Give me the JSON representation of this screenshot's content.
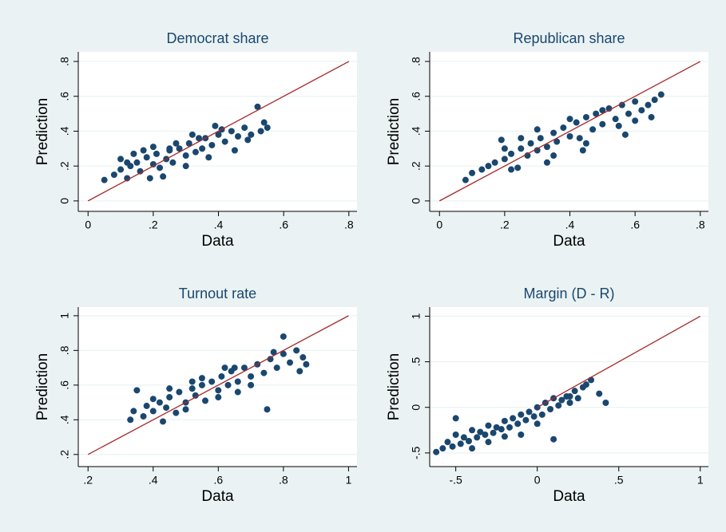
{
  "chart_data": [
    {
      "type": "scatter",
      "title": "Democrat share",
      "xlabel": "Data",
      "ylabel": "Prediction",
      "color": "#1a476f",
      "grid": true,
      "xlim": [
        -0.03,
        0.825
      ],
      "ylim": [
        -0.06,
        0.855
      ],
      "xticks": [
        0,
        {
          "value": 0.2,
          "label": ".2"
        },
        {
          "value": 0.4,
          "label": ".4"
        },
        {
          "value": 0.6,
          "label": ".6"
        },
        {
          "value": 0.8,
          "label": ".8"
        }
      ],
      "yticks": [
        0,
        {
          "value": 0.2,
          "label": ".2"
        },
        {
          "value": 0.4,
          "label": ".4"
        },
        {
          "value": 0.6,
          "label": ".6"
        },
        {
          "value": 0.8,
          "label": ".8"
        }
      ],
      "x": [
        0.05,
        0.08,
        0.1,
        0.12,
        0.13,
        0.15,
        0.16,
        0.18,
        0.2,
        0.21,
        0.22,
        0.24,
        0.25,
        0.26,
        0.28,
        0.3,
        0.31,
        0.33,
        0.35,
        0.36,
        0.38,
        0.4,
        0.42,
        0.44,
        0.46,
        0.48,
        0.5,
        0.52,
        0.54,
        0.55,
        0.1,
        0.14,
        0.17,
        0.2,
        0.23,
        0.27,
        0.3,
        0.34,
        0.37,
        0.41,
        0.45,
        0.49,
        0.53,
        0.12,
        0.19,
        0.25,
        0.32,
        0.39
      ],
      "y": [
        0.12,
        0.15,
        0.18,
        0.13,
        0.2,
        0.22,
        0.17,
        0.25,
        0.21,
        0.27,
        0.19,
        0.24,
        0.29,
        0.22,
        0.3,
        0.26,
        0.33,
        0.28,
        0.3,
        0.36,
        0.32,
        0.38,
        0.34,
        0.4,
        0.37,
        0.42,
        0.38,
        0.54,
        0.45,
        0.42,
        0.24,
        0.27,
        0.29,
        0.31,
        0.14,
        0.33,
        0.2,
        0.36,
        0.25,
        0.41,
        0.29,
        0.35,
        0.4,
        0.22,
        0.13,
        0.3,
        0.38,
        0.43
      ],
      "reference_line": {
        "x": [
          0,
          0.8
        ],
        "y": [
          0,
          0.8
        ],
        "color": "#a52a2a"
      }
    },
    {
      "type": "scatter",
      "title": "Republican share",
      "xlabel": "Data",
      "ylabel": "Prediction",
      "color": "#1a476f",
      "grid": true,
      "xlim": [
        -0.03,
        0.825
      ],
      "ylim": [
        -0.06,
        0.855
      ],
      "xticks": [
        0,
        {
          "value": 0.2,
          "label": ".2"
        },
        {
          "value": 0.4,
          "label": ".4"
        },
        {
          "value": 0.6,
          "label": ".6"
        },
        {
          "value": 0.8,
          "label": ".8"
        }
      ],
      "yticks": [
        0,
        {
          "value": 0.2,
          "label": ".2"
        },
        {
          "value": 0.4,
          "label": ".4"
        },
        {
          "value": 0.6,
          "label": ".6"
        },
        {
          "value": 0.8,
          "label": ".8"
        }
      ],
      "x": [
        0.08,
        0.1,
        0.13,
        0.15,
        0.17,
        0.19,
        0.2,
        0.22,
        0.24,
        0.25,
        0.27,
        0.28,
        0.3,
        0.31,
        0.33,
        0.35,
        0.36,
        0.38,
        0.4,
        0.42,
        0.43,
        0.45,
        0.47,
        0.48,
        0.5,
        0.52,
        0.54,
        0.56,
        0.58,
        0.6,
        0.62,
        0.64,
        0.66,
        0.68,
        0.2,
        0.25,
        0.3,
        0.35,
        0.4,
        0.45,
        0.5,
        0.55,
        0.6,
        0.65,
        0.22,
        0.33,
        0.44,
        0.57
      ],
      "y": [
        0.12,
        0.16,
        0.18,
        0.2,
        0.22,
        0.35,
        0.24,
        0.27,
        0.19,
        0.3,
        0.26,
        0.33,
        0.29,
        0.36,
        0.31,
        0.39,
        0.34,
        0.42,
        0.37,
        0.45,
        0.36,
        0.48,
        0.41,
        0.5,
        0.44,
        0.53,
        0.47,
        0.55,
        0.5,
        0.57,
        0.52,
        0.55,
        0.58,
        0.61,
        0.3,
        0.36,
        0.41,
        0.26,
        0.47,
        0.33,
        0.52,
        0.43,
        0.46,
        0.48,
        0.18,
        0.22,
        0.29,
        0.38
      ],
      "reference_line": {
        "x": [
          0,
          0.8
        ],
        "y": [
          0,
          0.8
        ],
        "color": "#a52a2a"
      }
    },
    {
      "type": "scatter",
      "title": "Turnout rate",
      "xlabel": "Data",
      "ylabel": "Prediction",
      "color": "#1a476f",
      "grid": true,
      "xlim": [
        0.17,
        1.026
      ],
      "ylim": [
        0.13,
        1.05
      ],
      "xticks": [
        {
          "value": 0.2,
          "label": ".2"
        },
        {
          "value": 0.4,
          "label": ".4"
        },
        {
          "value": 0.6,
          "label": ".6"
        },
        {
          "value": 0.8,
          "label": ".8"
        },
        1
      ],
      "yticks": [
        {
          "value": 0.2,
          "label": ".2"
        },
        {
          "value": 0.4,
          "label": ".4"
        },
        {
          "value": 0.6,
          "label": ".6"
        },
        {
          "value": 0.8,
          "label": ".8"
        },
        1
      ],
      "x": [
        0.33,
        0.35,
        0.37,
        0.4,
        0.42,
        0.44,
        0.45,
        0.47,
        0.48,
        0.5,
        0.52,
        0.53,
        0.55,
        0.56,
        0.58,
        0.6,
        0.61,
        0.63,
        0.64,
        0.66,
        0.68,
        0.7,
        0.72,
        0.74,
        0.76,
        0.78,
        0.8,
        0.82,
        0.84,
        0.86,
        0.4,
        0.45,
        0.5,
        0.55,
        0.6,
        0.65,
        0.7,
        0.75,
        0.8,
        0.85,
        0.38,
        0.52,
        0.62,
        0.77,
        0.87,
        0.34,
        0.43,
        0.66
      ],
      "y": [
        0.4,
        0.57,
        0.42,
        0.45,
        0.5,
        0.47,
        0.53,
        0.44,
        0.56,
        0.5,
        0.58,
        0.54,
        0.6,
        0.51,
        0.62,
        0.57,
        0.65,
        0.6,
        0.68,
        0.62,
        0.7,
        0.65,
        0.72,
        0.67,
        0.75,
        0.7,
        0.78,
        0.73,
        0.8,
        0.76,
        0.52,
        0.58,
        0.46,
        0.64,
        0.53,
        0.7,
        0.6,
        0.46,
        0.88,
        0.68,
        0.48,
        0.62,
        0.7,
        0.79,
        0.72,
        0.45,
        0.39,
        0.56
      ],
      "reference_line": {
        "x": [
          0.2,
          1
        ],
        "y": [
          0.2,
          1
        ],
        "color": "#a52a2a"
      }
    },
    {
      "type": "scatter",
      "title": "Margin (D - R)",
      "xlabel": "Data",
      "ylabel": "Prediction",
      "color": "#1a476f",
      "grid": true,
      "xlim": [
        -0.66,
        1.05
      ],
      "ylim": [
        -0.65,
        1.1
      ],
      "xticks": [
        {
          "value": -0.5,
          "label": "-.5"
        },
        0,
        {
          "value": 0.5,
          "label": ".5"
        },
        1
      ],
      "yticks": [
        {
          "value": -0.5,
          "label": "-.5"
        },
        0,
        {
          "value": 0.5,
          "label": ".5"
        },
        1
      ],
      "x": [
        -0.62,
        -0.58,
        -0.55,
        -0.52,
        -0.5,
        -0.47,
        -0.45,
        -0.42,
        -0.4,
        -0.37,
        -0.35,
        -0.32,
        -0.3,
        -0.27,
        -0.25,
        -0.22,
        -0.2,
        -0.17,
        -0.15,
        -0.12,
        -0.1,
        -0.07,
        -0.05,
        -0.02,
        0,
        0.03,
        0.05,
        0.08,
        0.1,
        0.13,
        0.15,
        0.18,
        0.2,
        0.23,
        0.25,
        0.28,
        0.3,
        0.33,
        0.38,
        0.42,
        -0.5,
        -0.4,
        -0.3,
        -0.2,
        -0.1,
        0,
        0.1,
        0.2
      ],
      "y": [
        -0.49,
        -0.45,
        -0.38,
        -0.43,
        -0.3,
        -0.4,
        -0.33,
        -0.37,
        -0.25,
        -0.33,
        -0.27,
        -0.3,
        -0.2,
        -0.28,
        -0.22,
        -0.24,
        -0.15,
        -0.22,
        -0.12,
        -0.18,
        -0.08,
        -0.14,
        -0.05,
        -0.1,
        0,
        -0.08,
        0.05,
        -0.02,
        0.1,
        0.02,
        0.08,
        0.12,
        0.05,
        0.18,
        0.1,
        0.22,
        0.25,
        0.3,
        0.15,
        0.05,
        -0.12,
        -0.45,
        -0.38,
        -0.32,
        -0.3,
        -0.18,
        -0.35,
        0.12
      ],
      "reference_line": {
        "x": [
          0,
          1
        ],
        "y": [
          0,
          1
        ],
        "color": "#a52a2a"
      }
    }
  ]
}
